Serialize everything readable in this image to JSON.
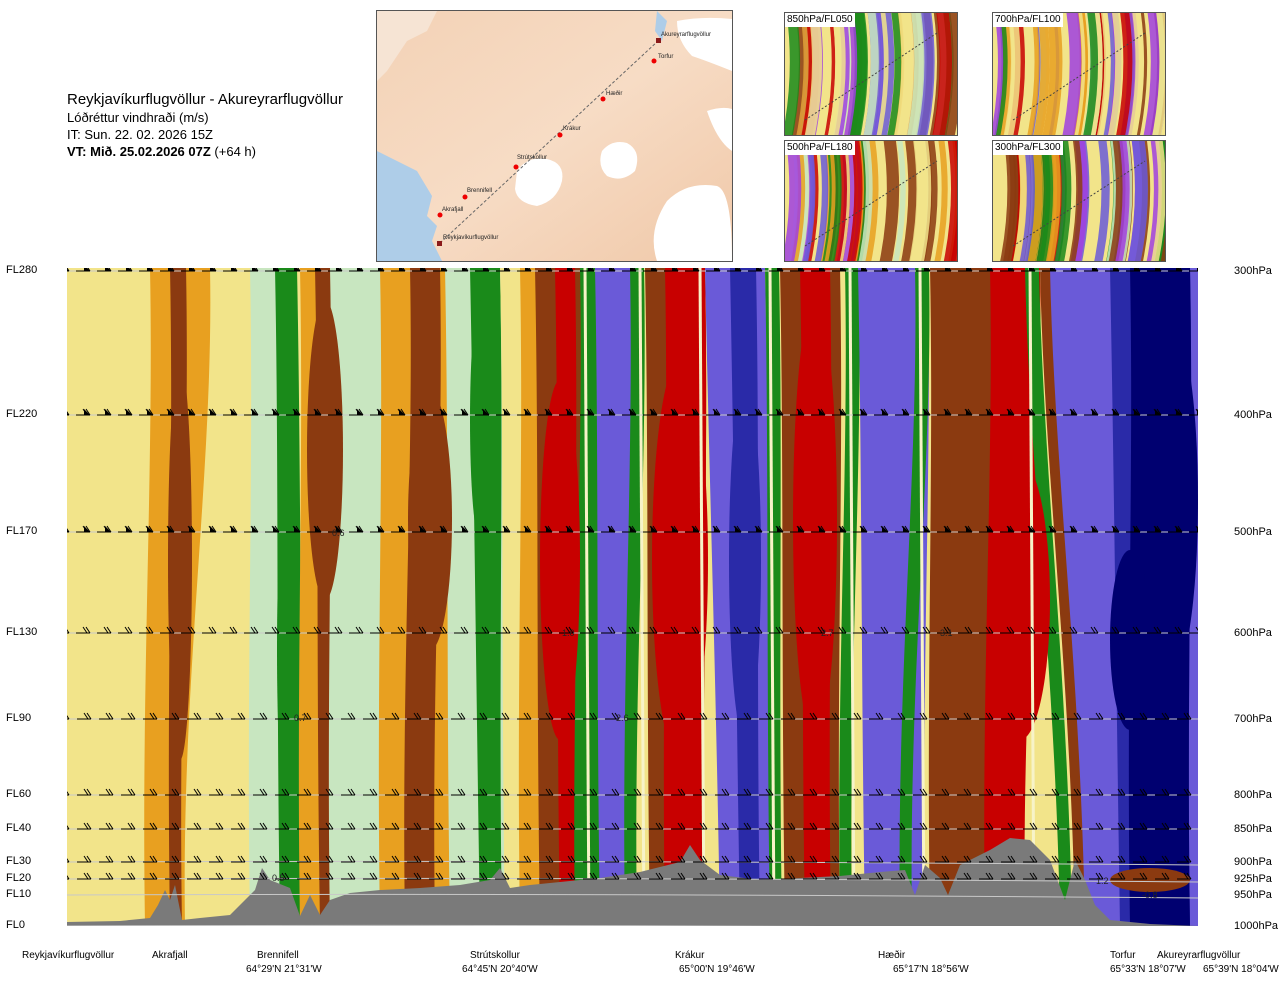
{
  "title": {
    "route": "Reykjavíkurflugvöllur - Akureyrarflugvöllur",
    "parameter": "Lóðréttur vindhraði (m/s)",
    "issue_time": "IT: Sun. 22. 02. 2026 15Z",
    "valid_time": "VT: Mið. 25.02.2026 07Z",
    "lead": "(+64 h)"
  },
  "map": {
    "stations": [
      "Akureyrarflugvöllur",
      "Torfur",
      "Hæðir",
      "Krákur",
      "Strútskollur",
      "Brennifell",
      "Akrafjall",
      "Reykjavíkurflugvöllur"
    ]
  },
  "panels": [
    {
      "label": "850hPa/FL050"
    },
    {
      "label": "700hPa/FL100"
    },
    {
      "label": "500hPa/FL180"
    },
    {
      "label": "300hPa/FL300"
    }
  ],
  "colors": {
    "strong_down": "#000070",
    "down": "#2a2aa8",
    "weak_down": "#6a5ad8",
    "slight_down": "#5a9ec8",
    "neutral_green": "#c8e6c0",
    "up_green": "#1a8a1a",
    "neutral_yellow": "#f2e48a",
    "up_orange": "#e8a020",
    "up_brown": "#8b3a10",
    "up_red": "#c80000",
    "terrain": "#7a7a7a"
  },
  "chart_data": {
    "type": "heatmap",
    "variable": "Lóðréttur vindhraði (m/s)",
    "y_levels_fl": [
      "FL280",
      "FL220",
      "FL170",
      "FL130",
      "FL90",
      "FL60",
      "FL40",
      "FL30",
      "FL20",
      "FL10",
      "FL0"
    ],
    "y_levels_hpa": [
      "300hPa",
      "400hPa",
      "500hPa",
      "600hPa",
      "700hPa",
      "800hPa",
      "850hPa",
      "900hPa",
      "925hPa",
      "950hPa",
      "1000hPa"
    ],
    "pressure_values": [
      300,
      400,
      500,
      600,
      700,
      800,
      850,
      900,
      925,
      950,
      1000
    ],
    "x_stations": [
      {
        "name": "Reykjavíkurflugvöllur",
        "coord": ""
      },
      {
        "name": "Akrafjall",
        "coord": ""
      },
      {
        "name": "Brennifell",
        "coord": "64°29'N 21°31'W"
      },
      {
        "name": "Strútskollur",
        "coord": "64°45'N 20°40'W"
      },
      {
        "name": "Krákur",
        "coord": "65°00'N 19°46'W"
      },
      {
        "name": "Hæðir",
        "coord": "65°17'N 18°56'W"
      },
      {
        "name": "Torfur",
        "coord": "65°33'N 18°07'W"
      },
      {
        "name": "Akureyrarflugvöllur",
        "coord": "65°39'N 18°04'W"
      }
    ],
    "contour_annotations": [
      "0.6",
      "1.0",
      "0.7",
      "2.6",
      "2.7",
      "3.1",
      "0.5",
      "1.2",
      "-0.8"
    ]
  }
}
